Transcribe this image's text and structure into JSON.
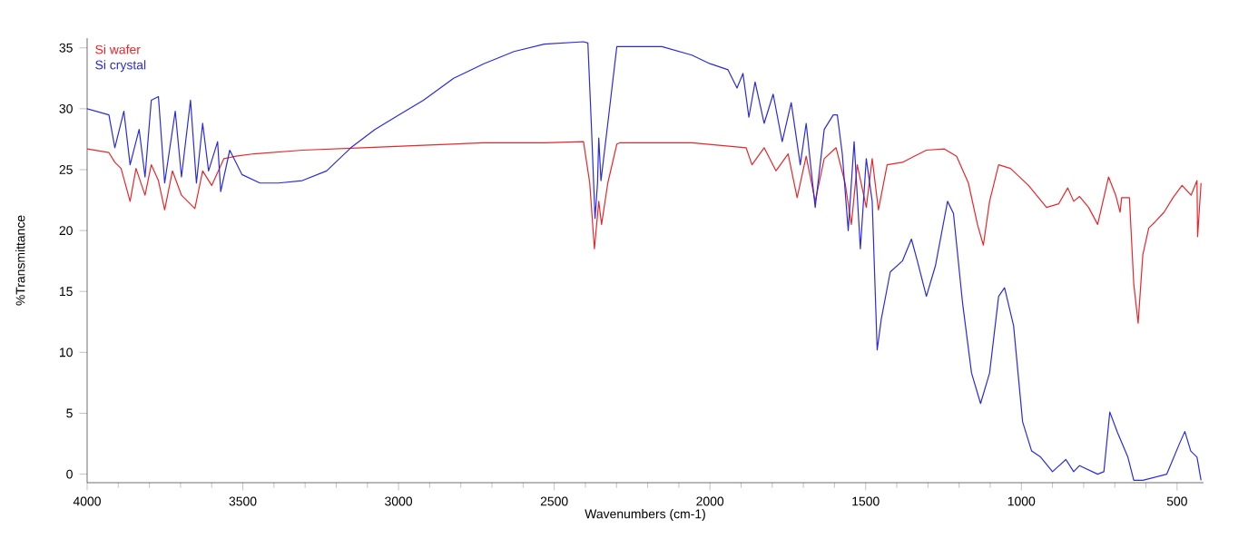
{
  "chart_data": {
    "type": "line",
    "xlabel": "Wavenumbers (cm-1)",
    "ylabel": "%Transmittance",
    "xlim": [
      4000,
      415
    ],
    "ylim": [
      -0.7,
      35.8
    ],
    "xticks": [
      4000,
      3500,
      3000,
      2500,
      2000,
      1500,
      1000,
      500
    ],
    "yticks": [
      0,
      5,
      10,
      15,
      20,
      25,
      30,
      35
    ],
    "grid": false,
    "legend": "top left",
    "marker": "none",
    "line_style": "solid",
    "series": [
      {
        "name": "Si wafer",
        "color": "#e8262b",
        "x": [
          4000,
          3930,
          3911,
          3891,
          3862,
          3843,
          3814,
          3794,
          3771,
          3751,
          3726,
          3697,
          3654,
          3629,
          3600,
          3561,
          3522,
          3464,
          3309,
          3115,
          2920,
          2726,
          2532,
          2406,
          2386,
          2371,
          2357,
          2348,
          2328,
          2299,
          2290,
          2058,
          1884,
          1865,
          1826,
          1788,
          1749,
          1720,
          1691,
          1662,
          1633,
          1595,
          1566,
          1546,
          1527,
          1498,
          1479,
          1459,
          1431,
          1382,
          1344,
          1305,
          1247,
          1208,
          1170,
          1141,
          1122,
          1102,
          1073,
          1035,
          977,
          919,
          880,
          851,
          832,
          813,
          784,
          755,
          720,
          697,
          683,
          678,
          653,
          639,
          625,
          610,
          591,
          571,
          542,
          513,
          484,
          455,
          436,
          434,
          423
        ],
        "values": [
          26.7,
          26.4,
          25.6,
          25.1,
          22.4,
          25.1,
          22.9,
          25.4,
          24.1,
          21.7,
          24.9,
          22.9,
          21.8,
          24.9,
          23.7,
          25.9,
          26.1,
          26.3,
          26.6,
          26.8,
          27.0,
          27.2,
          27.2,
          27.3,
          23.9,
          18.5,
          22.4,
          20.5,
          23.9,
          27.1,
          27.2,
          27.2,
          26.8,
          25.4,
          26.8,
          24.9,
          26.3,
          22.7,
          26.1,
          22.4,
          25.9,
          26.8,
          23.9,
          20.5,
          25.4,
          21.9,
          25.9,
          21.7,
          25.4,
          25.6,
          26.1,
          26.6,
          26.7,
          26.1,
          23.9,
          20.5,
          18.8,
          22.4,
          25.4,
          25.1,
          23.7,
          21.9,
          22.2,
          23.5,
          22.4,
          22.8,
          21.9,
          20.5,
          24.4,
          22.9,
          21.5,
          22.7,
          22.7,
          15.6,
          12.4,
          18.0,
          20.2,
          20.7,
          21.5,
          22.7,
          23.7,
          22.9,
          24.1,
          19.5,
          23.9
        ]
      },
      {
        "name": "Si crystal",
        "color": "#2a2ae0",
        "x": [
          4000,
          3930,
          3911,
          3882,
          3862,
          3833,
          3814,
          3794,
          3771,
          3751,
          3717,
          3697,
          3668,
          3649,
          3629,
          3610,
          3581,
          3571,
          3542,
          3503,
          3445,
          3386,
          3309,
          3231,
          3153,
          3076,
          2998,
          2920,
          2823,
          2726,
          2629,
          2532,
          2406,
          2392,
          2381,
          2369,
          2361,
          2357,
          2350,
          2328,
          2299,
          2280,
          2154,
          2058,
          2000,
          1942,
          1913,
          1894,
          1875,
          1855,
          1826,
          1797,
          1768,
          1739,
          1710,
          1691,
          1662,
          1633,
          1604,
          1591,
          1575,
          1556,
          1537,
          1517,
          1498,
          1479,
          1463,
          1450,
          1421,
          1382,
          1353,
          1334,
          1305,
          1276,
          1237,
          1218,
          1189,
          1160,
          1131,
          1102,
          1073,
          1054,
          1025,
          996,
          967,
          938,
          900,
          857,
          832,
          813,
          755,
          735,
          716,
          691,
          658,
          639,
          610,
          533,
          494,
          475,
          456,
          436,
          423
        ],
        "values": [
          30.0,
          29.5,
          26.8,
          29.8,
          25.4,
          28.3,
          24.4,
          30.7,
          31.0,
          23.9,
          29.8,
          24.4,
          30.7,
          23.9,
          28.8,
          24.9,
          27.3,
          23.2,
          26.6,
          24.6,
          23.9,
          23.9,
          24.1,
          24.9,
          26.8,
          28.3,
          29.5,
          30.7,
          32.5,
          33.7,
          34.7,
          35.3,
          35.5,
          35.4,
          28.8,
          21.0,
          23.9,
          27.6,
          24.1,
          28.8,
          35.1,
          35.1,
          35.1,
          34.4,
          33.7,
          33.2,
          31.7,
          32.9,
          29.3,
          32.2,
          28.8,
          31.2,
          27.3,
          30.5,
          25.4,
          28.8,
          21.9,
          28.3,
          29.5,
          29.5,
          26.3,
          20.0,
          27.3,
          18.5,
          25.9,
          22.4,
          10.2,
          12.7,
          16.6,
          17.5,
          19.3,
          17.5,
          14.6,
          17.1,
          22.4,
          21.4,
          14.1,
          8.3,
          5.8,
          8.3,
          14.6,
          15.3,
          12.2,
          4.3,
          1.9,
          1.4,
          0.2,
          1.2,
          0.2,
          0.7,
          0.0,
          0.2,
          5.1,
          3.4,
          1.4,
          -0.5,
          -0.5,
          0.0,
          2.4,
          3.5,
          1.9,
          1.4,
          -0.5
        ]
      }
    ]
  }
}
